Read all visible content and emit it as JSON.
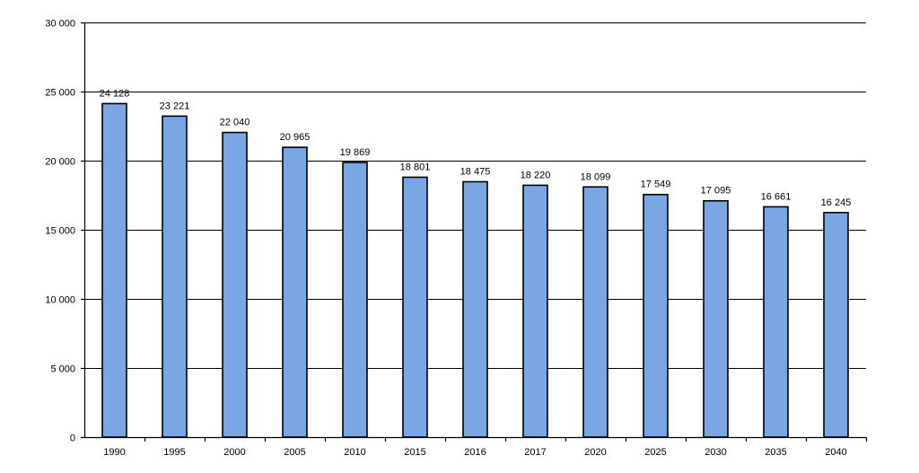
{
  "chart_data": {
    "type": "bar",
    "categories": [
      "1990",
      "1995",
      "2000",
      "2005",
      "2010",
      "2015",
      "2016",
      "2017",
      "2020",
      "2025",
      "2030",
      "2035",
      "2040"
    ],
    "values": [
      24128,
      23221,
      22040,
      20965,
      19869,
      18801,
      18475,
      18220,
      18099,
      17549,
      17095,
      16661,
      16245
    ],
    "value_labels": [
      "24 128",
      "23 221",
      "22 040",
      "20 965",
      "19 869",
      "18 801",
      "18 475",
      "18 220",
      "18 099",
      "17 549",
      "17 095",
      "16 661",
      "16 245"
    ],
    "ylim": [
      0,
      30000
    ],
    "yticks": [
      0,
      5000,
      10000,
      15000,
      20000,
      25000,
      30000
    ],
    "ytick_labels": [
      "0",
      "5 000",
      "10 000",
      "15 000",
      "20 000",
      "25 000",
      "30 000"
    ],
    "title": "",
    "xlabel": "",
    "ylabel": "",
    "grid": true,
    "legend": "none",
    "bar_color": "#7aa6e4",
    "bar_edge_color": "#000000"
  }
}
